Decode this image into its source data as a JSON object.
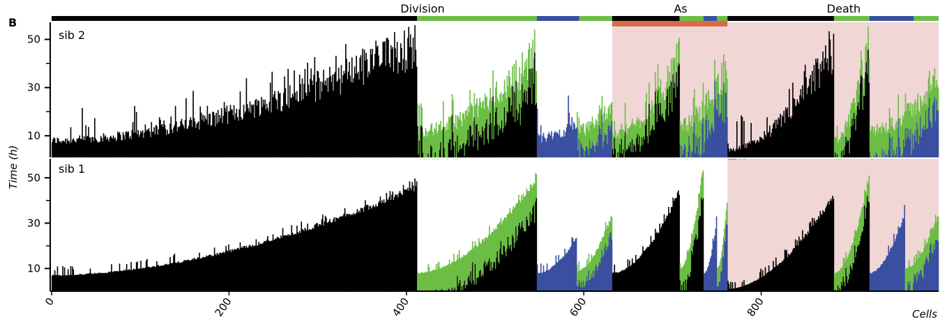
{
  "figure": {
    "panel_label": "B",
    "y_axis_label": "Time (h)",
    "x_axis_label": "Cells",
    "group_headers": [
      "Division",
      "As",
      "Death"
    ]
  },
  "chart_data": {
    "type": "bar",
    "xlabel": "Cells",
    "ylabel": "Time (h)",
    "xlim": [
      0,
      1000
    ],
    "x_ticks": [
      0,
      200,
      400,
      600,
      800
    ],
    "y_ticks": [
      10,
      30,
      50
    ],
    "colors": {
      "black": "#000000",
      "green": "#6cbd45",
      "blue": "#3a4fa0",
      "highlight_bg": "#f1d6d6",
      "highlight_bar": "#d96a4a"
    },
    "highlight_regions": {
      "sib2": [
        [
          632,
          762
        ],
        [
          762,
          1000
        ]
      ],
      "sib1": [
        [
          762,
          1000
        ]
      ]
    },
    "top_annotation_bar": [
      {
        "x0": 0,
        "x1": 412,
        "color": "black"
      },
      {
        "x0": 412,
        "x1": 547,
        "color": "green"
      },
      {
        "x0": 547,
        "x1": 595,
        "color": "blue"
      },
      {
        "x0": 595,
        "x1": 632,
        "color": "green"
      },
      {
        "x0": 632,
        "x1": 708,
        "color": "black"
      },
      {
        "x0": 708,
        "x1": 735,
        "color": "green"
      },
      {
        "x0": 735,
        "x1": 750,
        "color": "blue"
      },
      {
        "x0": 750,
        "x1": 762,
        "color": "green"
      },
      {
        "x0": 762,
        "x1": 882,
        "color": "black"
      },
      {
        "x0": 882,
        "x1": 922,
        "color": "green"
      },
      {
        "x0": 922,
        "x1": 972,
        "color": "blue"
      },
      {
        "x0": 972,
        "x1": 1000,
        "color": "green"
      }
    ],
    "panels": [
      {
        "name": "sib 2",
        "noise": 0.85,
        "groups": [
          {
            "x0": 0,
            "x1": 412,
            "top": "black",
            "under": "black",
            "y0": 8,
            "y1": 48,
            "spread_lo": 0
          },
          {
            "x0": 412,
            "x1": 547,
            "top": "green",
            "under": "black",
            "y0": 12,
            "y1": 44,
            "spread_lo": 8
          },
          {
            "x0": 547,
            "x1": 592,
            "top": "blue",
            "under": "blue",
            "y0": 9,
            "y1": 15,
            "spread_lo": 3
          },
          {
            "x0": 592,
            "x1": 632,
            "top": "green",
            "under": "blue",
            "y0": 12,
            "y1": 24,
            "spread_lo": 6
          },
          {
            "x0": 632,
            "x1": 708,
            "top": "green",
            "under": "black",
            "y0": 10,
            "y1": 42,
            "spread_lo": 6
          },
          {
            "x0": 708,
            "x1": 762,
            "top": "green",
            "under": "blue",
            "y0": 14,
            "y1": 40,
            "spread_lo": 8
          },
          {
            "x0": 762,
            "x1": 882,
            "top": "black",
            "under": "black",
            "y0": 4,
            "y1": 46,
            "spread_lo": 3
          },
          {
            "x0": 882,
            "x1": 922,
            "top": "green",
            "under": "black",
            "y0": 8,
            "y1": 48,
            "spread_lo": 6
          },
          {
            "x0": 922,
            "x1": 1000,
            "top": "green",
            "under": "blue",
            "y0": 12,
            "y1": 34,
            "spread_lo": 8
          }
        ]
      },
      {
        "name": "sib 1",
        "noise": 0.15,
        "groups": [
          {
            "x0": 0,
            "x1": 412,
            "top": "black",
            "under": "black",
            "y0": 7,
            "y1": 46,
            "spread_lo": 0
          },
          {
            "x0": 412,
            "x1": 547,
            "top": "green",
            "under": "black",
            "y0": 8,
            "y1": 50,
            "spread_lo": 9
          },
          {
            "x0": 547,
            "x1": 592,
            "top": "blue",
            "under": "blue",
            "y0": 8,
            "y1": 23,
            "spread_lo": 4
          },
          {
            "x0": 592,
            "x1": 632,
            "top": "green",
            "under": "blue",
            "y0": 9,
            "y1": 34,
            "spread_lo": 5
          },
          {
            "x0": 632,
            "x1": 708,
            "top": "black",
            "under": "black",
            "y0": 8,
            "y1": 44,
            "spread_lo": 0
          },
          {
            "x0": 708,
            "x1": 735,
            "top": "green",
            "under": "black",
            "y0": 10,
            "y1": 55,
            "spread_lo": 7
          },
          {
            "x0": 735,
            "x1": 750,
            "top": "blue",
            "under": "blue",
            "y0": 8,
            "y1": 30,
            "spread_lo": 4
          },
          {
            "x0": 750,
            "x1": 762,
            "top": "green",
            "under": "blue",
            "y0": 10,
            "y1": 40,
            "spread_lo": 5
          },
          {
            "x0": 762,
            "x1": 882,
            "top": "black",
            "under": "black",
            "y0": 1,
            "y1": 42,
            "spread_lo": 0
          },
          {
            "x0": 882,
            "x1": 922,
            "top": "green",
            "under": "black",
            "y0": 8,
            "y1": 50,
            "spread_lo": 6
          },
          {
            "x0": 922,
            "x1": 962,
            "top": "blue",
            "under": "blue",
            "y0": 8,
            "y1": 34,
            "spread_lo": 5
          },
          {
            "x0": 962,
            "x1": 1000,
            "top": "green",
            "under": "blue",
            "y0": 10,
            "y1": 34,
            "spread_lo": 6
          }
        ]
      }
    ]
  }
}
